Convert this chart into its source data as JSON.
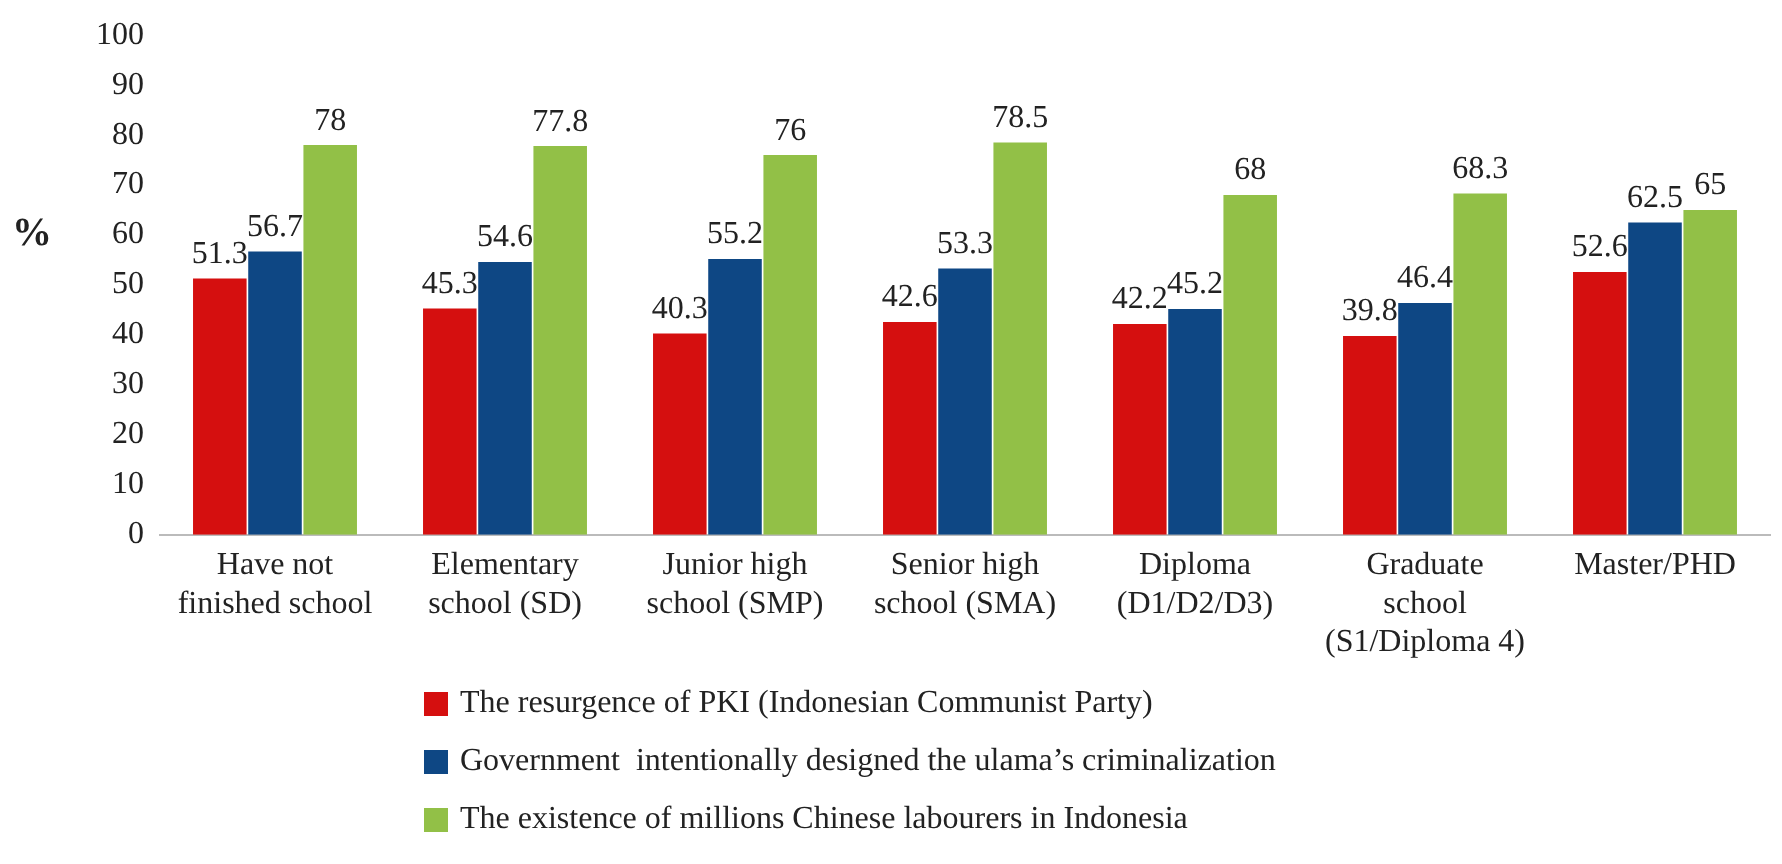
{
  "chart_data": {
    "type": "bar",
    "ylabel": "%",
    "categories": [
      "Have not\nfinished school",
      "Elementary\nschool (SD)",
      "Junior high\nschool (SMP)",
      "Senior high\nschool (SMA)",
      "Diploma\n(D1/D2/D3)",
      "Graduate\nschool\n(S1/Diploma 4)",
      "Master/PHD"
    ],
    "series": [
      {
        "name": "The resurgence of PKI (Indonesian Communist Party)",
        "color": "#d50f0f",
        "values": [
          51.3,
          45.3,
          40.3,
          42.6,
          42.2,
          39.8,
          52.6
        ]
      },
      {
        "name": "Government  intentionally designed the ulama’s criminalization",
        "color": "#0e4784",
        "values": [
          56.7,
          54.6,
          55.2,
          53.3,
          45.2,
          46.4,
          62.5
        ]
      },
      {
        "name": "The existence of millions Chinese labourers in Indonesia",
        "color": "#92c047",
        "values": [
          78,
          77.8,
          76,
          78.5,
          68,
          68.3,
          65
        ]
      }
    ],
    "ylim": [
      0,
      100
    ],
    "yticks": [
      0,
      10,
      20,
      30,
      40,
      50,
      60,
      70,
      80,
      90,
      100
    ],
    "grid": false,
    "legend": "bottom",
    "data_labels": true
  }
}
